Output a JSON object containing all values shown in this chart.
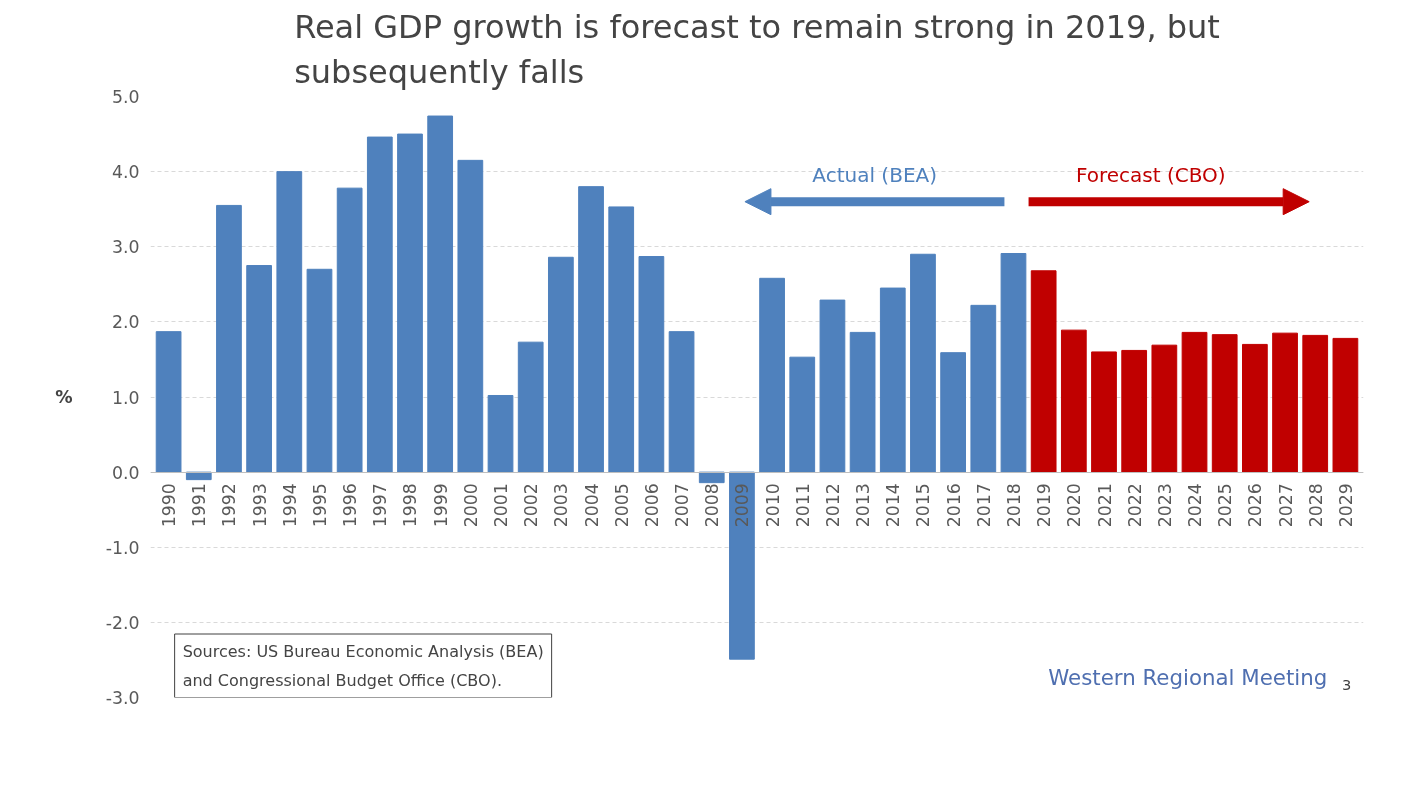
{
  "chart_data": {
    "type": "bar",
    "title": "Real GDP growth is forecast to remain strong in 2019, but subsequently falls",
    "ylabel": "%",
    "categories": [
      "1990",
      "1991",
      "1992",
      "1993",
      "1994",
      "1995",
      "1996",
      "1997",
      "1998",
      "1999",
      "2000",
      "2001",
      "2002",
      "2003",
      "2004",
      "2005",
      "2006",
      "2007",
      "2008",
      "2009",
      "2010",
      "2011",
      "2012",
      "2013",
      "2014",
      "2015",
      "2016",
      "2017",
      "2018",
      "2019",
      "2020",
      "2021",
      "2022",
      "2023",
      "2024",
      "2025",
      "2026",
      "2027",
      "2028",
      "2029"
    ],
    "series": [
      {
        "name": "Actual (BEA)",
        "color": "#4f81bd",
        "values": [
          1.87,
          -0.1,
          3.55,
          2.75,
          4.0,
          2.7,
          3.78,
          4.46,
          4.5,
          4.74,
          4.15,
          1.02,
          1.73,
          2.86,
          3.8,
          3.53,
          2.87,
          1.87,
          -0.14,
          -2.49,
          2.58,
          1.53,
          2.29,
          1.86,
          2.45,
          2.9,
          1.59,
          2.22,
          2.91,
          null,
          null,
          null,
          null,
          null,
          null,
          null,
          null,
          null,
          null,
          null
        ]
      },
      {
        "name": "Forecast (CBO)",
        "color": "#c00000",
        "values": [
          null,
          null,
          null,
          null,
          null,
          null,
          null,
          null,
          null,
          null,
          null,
          null,
          null,
          null,
          null,
          null,
          null,
          null,
          null,
          null,
          null,
          null,
          null,
          null,
          null,
          null,
          null,
          null,
          null,
          2.68,
          1.89,
          1.6,
          1.62,
          1.69,
          1.86,
          1.83,
          1.7,
          1.85,
          1.82,
          1.78
        ]
      }
    ],
    "ylim": [
      -3,
      5
    ],
    "yticks": [
      {
        "value": -3,
        "label": "-3.0"
      },
      {
        "value": -2,
        "label": "-2.0"
      },
      {
        "value": -1,
        "label": "-1.0"
      },
      {
        "value": 0,
        "label": "0.0"
      },
      {
        "value": 1,
        "label": "1.0"
      },
      {
        "value": 2,
        "label": "2.0"
      },
      {
        "value": 3,
        "label": "3.0"
      },
      {
        "value": 4,
        "label": "4.0"
      },
      {
        "value": 5,
        "label": "5.0"
      }
    ],
    "grid": "y",
    "annotations": [
      "Sources: US Bureau Economic Analysis (BEA)\nand Congressional Budget Office (CBO).",
      "Western Regional Meeting",
      "3"
    ]
  }
}
